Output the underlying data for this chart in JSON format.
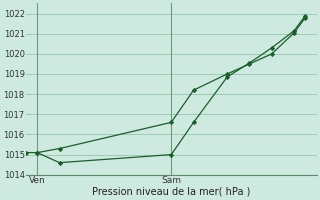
{
  "xlabel": "Pression niveau de la mer( hPa )",
  "ylim": [
    1014,
    1022.5
  ],
  "yticks": [
    1014,
    1015,
    1016,
    1017,
    1018,
    1019,
    1020,
    1021,
    1022
  ],
  "background_color": "#ceeae0",
  "grid_color": "#9dcbb5",
  "line_color": "#1a5e2a",
  "xtick_labels": [
    "Ven",
    "Sam"
  ],
  "xtick_positions": [
    0,
    24
  ],
  "xlim": [
    -2,
    50
  ],
  "vline_positions": [
    0,
    24
  ],
  "line1_x": [
    -2,
    0,
    4,
    24,
    28,
    34,
    38,
    42,
    46,
    48
  ],
  "line1_y": [
    1015.1,
    1015.1,
    1015.3,
    1016.6,
    1018.2,
    1019.0,
    1019.5,
    1020.0,
    1021.05,
    1021.8
  ],
  "line2_x": [
    0,
    4,
    24,
    28,
    34,
    38,
    42,
    46,
    48
  ],
  "line2_y": [
    1015.1,
    1014.6,
    1015.0,
    1016.6,
    1018.85,
    1019.55,
    1020.3,
    1021.15,
    1021.9
  ]
}
